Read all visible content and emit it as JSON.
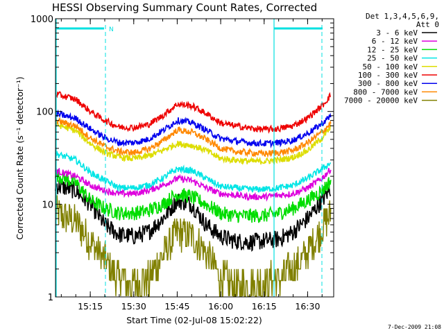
{
  "chart_data": {
    "type": "line",
    "title": "HESSI Observing Summary Count Rates, Corrected",
    "xlabel": "Start Time (02-Jul-08 15:02:22)",
    "ylabel": "Corrected Count Rate (s⁻¹ detector⁻¹)",
    "y_scale": "log",
    "ylim": [
      1,
      1000
    ],
    "xlim": [
      "15:03",
      "16:39"
    ],
    "x_ticks": [
      "15:15",
      "15:30",
      "15:45",
      "16:00",
      "16:15",
      "16:30"
    ],
    "y_ticks": [
      "1",
      "10",
      "100",
      "1000"
    ],
    "grid": false,
    "legend": {
      "placement": "right",
      "header": [
        "Det 1,3,4,5,6,9,",
        "Att 0"
      ]
    },
    "x": [
      "15:03",
      "15:10",
      "15:15",
      "15:20",
      "15:25",
      "15:30",
      "15:35",
      "15:40",
      "15:45",
      "15:50",
      "15:55",
      "16:00",
      "16:05",
      "16:10",
      "16:15",
      "16:20",
      "16:25",
      "16:30",
      "16:35",
      "16:38"
    ],
    "series": [
      {
        "name": "3 - 6 keV",
        "color": "#000000",
        "values": [
          16,
          14,
          10,
          6,
          4.7,
          4.5,
          5,
          7,
          11,
          10,
          6,
          4.5,
          4,
          3.9,
          4,
          4.2,
          5,
          7,
          11,
          15
        ]
      },
      {
        "name": "6 - 12 keV",
        "color": "#dd00dd",
        "values": [
          23,
          20,
          16,
          14,
          13,
          13,
          14,
          16,
          19,
          18,
          15,
          13,
          12.5,
          12,
          12,
          12.5,
          13,
          15,
          19,
          24
        ]
      },
      {
        "name": "12 - 25 keV",
        "color": "#00dd00",
        "values": [
          21,
          17,
          11,
          9,
          8,
          8,
          8.5,
          10,
          13,
          12,
          10,
          8,
          7.5,
          7.5,
          7.5,
          8,
          9,
          11,
          14,
          18
        ]
      },
      {
        "name": "25 - 50 keV",
        "color": "#00e5e5",
        "values": [
          35,
          30,
          22,
          18,
          15,
          15,
          16,
          19,
          24,
          23,
          19,
          15.5,
          15,
          14.5,
          14.5,
          15,
          16,
          19,
          24,
          28
        ]
      },
      {
        "name": "50 - 100 keV",
        "color": "#dddd00",
        "values": [
          73,
          62,
          45,
          36,
          32,
          31,
          33,
          38,
          45,
          43,
          38,
          31,
          30,
          29,
          29,
          30,
          32,
          38,
          52,
          67
        ]
      },
      {
        "name": "100 - 300 keV",
        "color": "#ee0000",
        "values": [
          155,
          135,
          100,
          80,
          68,
          67,
          72,
          90,
          120,
          115,
          95,
          75,
          70,
          66,
          64,
          65,
          70,
          85,
          115,
          150
        ]
      },
      {
        "name": "300 - 800 keV",
        "color": "#0000ee",
        "values": [
          95,
          84,
          65,
          52,
          46,
          46,
          50,
          62,
          80,
          76,
          63,
          51,
          48,
          46,
          45,
          46,
          49,
          58,
          74,
          90
        ]
      },
      {
        "name": "800 - 7000 keV",
        "color": "#ff8800",
        "values": [
          80,
          70,
          52,
          42,
          37,
          36,
          39,
          48,
          63,
          60,
          50,
          40,
          37,
          36,
          35,
          36,
          38,
          46,
          60,
          75
        ]
      },
      {
        "name": "7000 - 20000 keV",
        "color": "#808000",
        "values": [
          8,
          6.5,
          4,
          2.5,
          1.6,
          1.4,
          1.5,
          2.8,
          5,
          4.5,
          3,
          1.6,
          1.3,
          1.3,
          1.4,
          1.6,
          2,
          3,
          5.5,
          8
        ]
      }
    ],
    "annotations": [
      "N"
    ],
    "footer": "7-Dec-2009 21:08"
  }
}
